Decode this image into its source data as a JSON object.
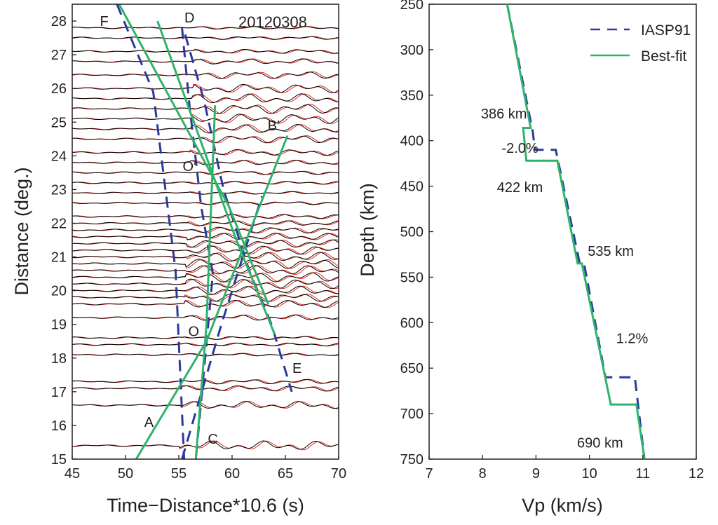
{
  "colors": {
    "waveform_observed": "#000000",
    "waveform_synthetic": "#e8291c",
    "iasp91": "#2b3a9a",
    "bestfit": "#2fb36b",
    "axis": "#231f20"
  },
  "chart_data": [
    {
      "type": "line",
      "panel": "left",
      "x_axis_label": "Time−Distance*10.6 (s)",
      "y_axis_label": "Distance (deg.)",
      "xlim": [
        45,
        70
      ],
      "ylim": [
        15,
        28.5
      ],
      "x_ticks": [
        "45",
        "50",
        "55",
        "60",
        "65",
        "70"
      ],
      "y_ticks": [
        "15",
        "16",
        "17",
        "18",
        "19",
        "20",
        "21",
        "22",
        "23",
        "24",
        "25",
        "26",
        "27",
        "28"
      ],
      "event_label": "20120308",
      "branch_labels": [
        {
          "text": "F",
          "x": 48.0,
          "y": 28.0
        },
        {
          "text": "D",
          "x": 56.0,
          "y": 28.1
        },
        {
          "text": "B′",
          "x": 63.9,
          "y": 24.9
        },
        {
          "text": "O′",
          "x": 56.0,
          "y": 23.7
        },
        {
          "text": "O",
          "x": 56.4,
          "y": 18.8
        },
        {
          "text": "E",
          "x": 66.1,
          "y": 17.7
        },
        {
          "text": "A",
          "x": 52.2,
          "y": 16.1
        },
        {
          "text": "C",
          "x": 58.2,
          "y": 15.6
        }
      ],
      "series": [
        {
          "style": "dashed",
          "color_key": "iasp91",
          "points": [
            [
              49.2,
              28.5
            ],
            [
              52.6,
              25.9
            ],
            [
              54.7,
              20.6
            ],
            [
              55.5,
              15.0
            ]
          ]
        },
        {
          "style": "dashed",
          "color_key": "iasp91",
          "points": [
            [
              55.3,
              27.8
            ],
            [
              56.0,
              25.5
            ],
            [
              57.1,
              22.5
            ],
            [
              58.2,
              20.5
            ],
            [
              56.6,
              15.0
            ]
          ]
        },
        {
          "style": "dashed",
          "color_key": "iasp91",
          "points": [
            [
              55.6,
              27.6
            ],
            [
              57.4,
              25.6
            ],
            [
              59.2,
              23.0
            ],
            [
              61.6,
              20.6
            ],
            [
              63.7,
              19.0
            ],
            [
              65.6,
              17.0
            ]
          ]
        },
        {
          "style": "dashed",
          "color_key": "iasp91",
          "points": [
            [
              55.3,
              15.0
            ],
            [
              59.0,
              19.0
            ],
            [
              62.8,
              22.8
            ]
          ]
        },
        {
          "style": "solid",
          "color_key": "bestfit",
          "points": [
            [
              49.4,
              28.5
            ],
            [
              59.7,
              22.5
            ],
            [
              63.4,
              19.6
            ]
          ]
        },
        {
          "style": "solid",
          "color_key": "bestfit",
          "points": [
            [
              53.0,
              28.0
            ],
            [
              60.4,
              21.5
            ],
            [
              64.0,
              18.7
            ]
          ]
        },
        {
          "style": "solid",
          "color_key": "bestfit",
          "points": [
            [
              56.6,
              15.0
            ],
            [
              57.6,
              19.0
            ],
            [
              58.4,
              25.5
            ]
          ]
        },
        {
          "style": "solid",
          "color_key": "bestfit",
          "points": [
            [
              51.0,
              15.0
            ],
            [
              57.6,
              18.5
            ],
            [
              65.2,
              24.6
            ]
          ]
        }
      ]
    },
    {
      "type": "line",
      "panel": "right",
      "x_axis_label": "Vp (km/s)",
      "y_axis_label": "Depth (km)",
      "xlim": [
        7,
        12
      ],
      "ylim": [
        750,
        250
      ],
      "x_ticks": [
        "7",
        "8",
        "9",
        "10",
        "11",
        "12"
      ],
      "y_ticks": [
        "250",
        "300",
        "350",
        "400",
        "450",
        "500",
        "550",
        "600",
        "650",
        "700",
        "750"
      ],
      "legend": {
        "position": "top-right",
        "entries": [
          "IASP91",
          "Best-fit"
        ]
      },
      "annotations": [
        {
          "text": "386 km",
          "x": 8.4,
          "y": 370
        },
        {
          "text": "-2.0%",
          "x": 8.7,
          "y": 408
        },
        {
          "text": "422 km",
          "x": 8.7,
          "y": 451
        },
        {
          "text": "535 km",
          "x": 10.4,
          "y": 521
        },
        {
          "text": "1.2%",
          "x": 10.8,
          "y": 617
        },
        {
          "text": "690 km",
          "x": 10.2,
          "y": 732
        }
      ],
      "series": [
        {
          "name": "IASP91",
          "style": "dashed",
          "color_key": "iasp91",
          "points": [
            [
              8.46,
              250
            ],
            [
              8.94,
              390
            ],
            [
              8.98,
              410
            ],
            [
              9.37,
              410
            ],
            [
              9.82,
              535
            ],
            [
              9.9,
              535
            ],
            [
              10.3,
              660
            ],
            [
              10.85,
              660
            ],
            [
              11.03,
              750
            ]
          ]
        },
        {
          "name": "Best-fit",
          "style": "solid",
          "color_key": "bestfit",
          "points": [
            [
              8.46,
              250
            ],
            [
              8.9,
              386
            ],
            [
              8.76,
              386
            ],
            [
              8.82,
              422
            ],
            [
              9.4,
              422
            ],
            [
              9.78,
              535
            ],
            [
              9.86,
              535
            ],
            [
              10.4,
              690
            ],
            [
              10.88,
              690
            ],
            [
              11.03,
              750
            ]
          ]
        }
      ]
    }
  ],
  "waveforms": {
    "distances": [
      15.4,
      16.6,
      17.1,
      17.3,
      18.1,
      18.4,
      18.6,
      19.2,
      19.6,
      19.8,
      20.0,
      20.2,
      20.4,
      20.6,
      20.8,
      21.0,
      21.2,
      21.4,
      21.6,
      21.8,
      22.0,
      22.2,
      22.6,
      22.9,
      23.2,
      23.5,
      23.8,
      24.1,
      24.5,
      24.8,
      25.1,
      25.4,
      25.7,
      26.0,
      26.4,
      26.8,
      27.1,
      27.5,
      27.8
    ]
  }
}
